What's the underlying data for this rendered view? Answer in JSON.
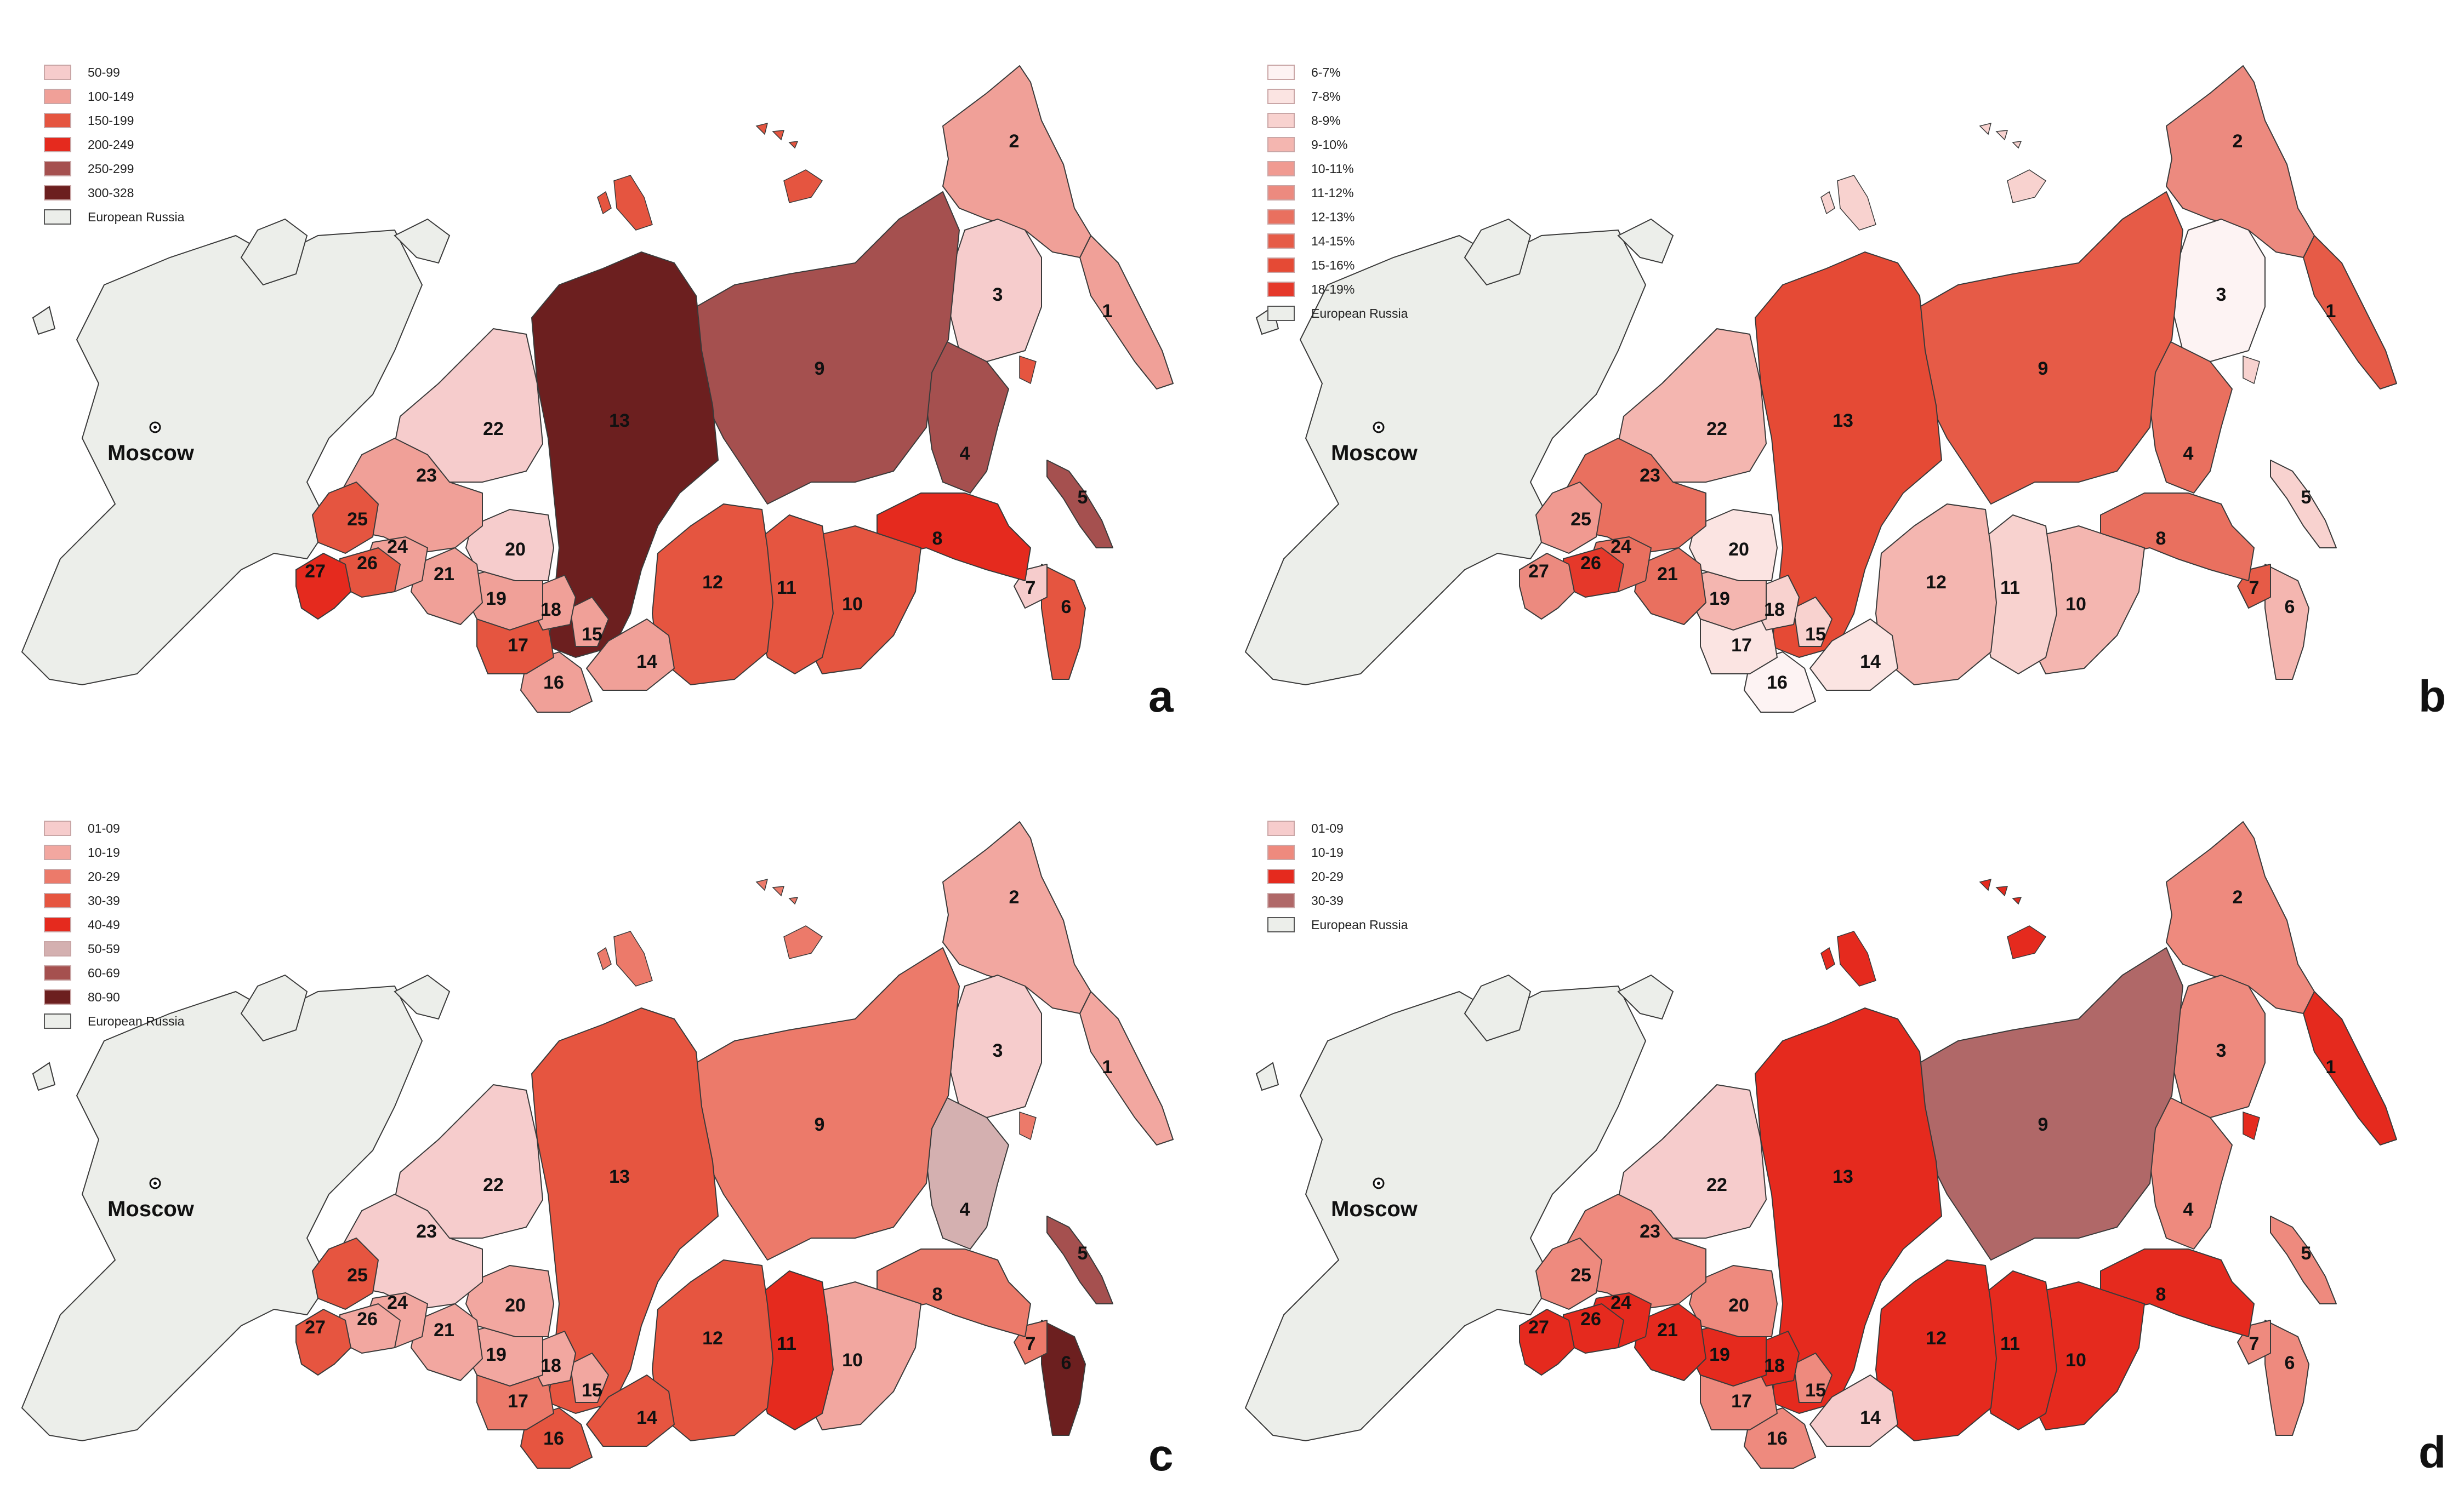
{
  "colors": {
    "european_russia": "#eceeea",
    "outline": "#3a3a3a",
    "inner_border": "#7a4a4a"
  },
  "city_label": "Moscow",
  "panels": [
    {
      "letter": "a",
      "legend": [
        {
          "label": "50-99",
          "color": "#f6cccc"
        },
        {
          "label": "100-149",
          "color": "#f0a098"
        },
        {
          "label": "150-199",
          "color": "#e55540"
        },
        {
          "label": "200-249",
          "color": "#e52a1e"
        },
        {
          "label": "250-299",
          "color": "#a5504f"
        },
        {
          "label": "300-328",
          "color": "#6c1f1f"
        },
        {
          "label": "European Russia",
          "color": "#eceeea"
        }
      ],
      "regions": {
        "1": 1,
        "2": 1,
        "3": 0,
        "4": 4,
        "5": 4,
        "6": 2,
        "7": 0,
        "8": 3,
        "9": 4,
        "10": 2,
        "11": 2,
        "12": 2,
        "13": 5,
        "14": 1,
        "15": 1,
        "16": 1,
        "17": 2,
        "18": 1,
        "19": 1,
        "20": 0,
        "21": 1,
        "22": 0,
        "23": 1,
        "24": 1,
        "25": 2,
        "26": 2,
        "27": 3
      }
    },
    {
      "letter": "b",
      "legend": [
        {
          "label": "6-7%",
          "color": "#fdf3f3"
        },
        {
          "label": "7-8%",
          "color": "#fbe4e2"
        },
        {
          "label": "8-9%",
          "color": "#f8d2cf"
        },
        {
          "label": "9-10%",
          "color": "#f4b6b0"
        },
        {
          "label": "10-11%",
          "color": "#f09a91"
        },
        {
          "label": "11-12%",
          "color": "#ec8a7f"
        },
        {
          "label": "12-13%",
          "color": "#e9705f"
        },
        {
          "label": "14-15%",
          "color": "#e65b47"
        },
        {
          "label": "15-16%",
          "color": "#e54a35"
        },
        {
          "label": "18-19%",
          "color": "#e5382a"
        },
        {
          "label": "European Russia",
          "color": "#eceeea"
        }
      ],
      "regions": {
        "1": 7,
        "2": 5,
        "3": 0,
        "4": 6,
        "5": 2,
        "6": 3,
        "7": 7,
        "8": 6,
        "9": 7,
        "10": 3,
        "11": 2,
        "12": 3,
        "13": 8,
        "14": 1,
        "15": 2,
        "16": 0,
        "17": 1,
        "18": 2,
        "19": 3,
        "20": 1,
        "21": 6,
        "22": 3,
        "23": 6,
        "24": 6,
        "25": 4,
        "26": 9,
        "27": 5
      }
    },
    {
      "letter": "c",
      "legend": [
        {
          "label": "01-09",
          "color": "#f6cccc"
        },
        {
          "label": "10-19",
          "color": "#f2a7a0"
        },
        {
          "label": "20-29",
          "color": "#ec7a6a"
        },
        {
          "label": "30-39",
          "color": "#e65540"
        },
        {
          "label": "40-49",
          "color": "#e52a1e"
        },
        {
          "label": "50-59",
          "color": "#d4b0b0"
        },
        {
          "label": "60-69",
          "color": "#a5504f"
        },
        {
          "label": "80-90",
          "color": "#6c1f1f"
        },
        {
          "label": "European Russia",
          "color": "#eceeea"
        }
      ],
      "regions": {
        "1": 1,
        "2": 1,
        "3": 0,
        "4": 5,
        "5": 6,
        "6": 7,
        "7": 2,
        "8": 2,
        "9": 2,
        "10": 1,
        "11": 4,
        "12": 3,
        "13": 3,
        "14": 3,
        "15": 1,
        "16": 3,
        "17": 2,
        "18": 1,
        "19": 1,
        "20": 1,
        "21": 1,
        "22": 0,
        "23": 0,
        "24": 1,
        "25": 3,
        "26": 1,
        "27": 3
      }
    },
    {
      "letter": "d",
      "legend": [
        {
          "label": "01-09",
          "color": "#f6cccc"
        },
        {
          "label": "10-19",
          "color": "#ee8a7e"
        },
        {
          "label": "20-29",
          "color": "#e52a1e"
        },
        {
          "label": "30-39",
          "color": "#b06868"
        },
        {
          "label": "European Russia",
          "color": "#eceeea"
        }
      ],
      "regions": {
        "1": 2,
        "2": 1,
        "3": 1,
        "4": 1,
        "5": 1,
        "6": 1,
        "7": 1,
        "8": 2,
        "9": 3,
        "10": 2,
        "11": 2,
        "12": 2,
        "13": 2,
        "14": 0,
        "15": 1,
        "16": 1,
        "17": 1,
        "18": 2,
        "19": 2,
        "20": 1,
        "21": 2,
        "22": 0,
        "23": 1,
        "24": 2,
        "25": 1,
        "26": 2,
        "27": 2
      }
    }
  ]
}
